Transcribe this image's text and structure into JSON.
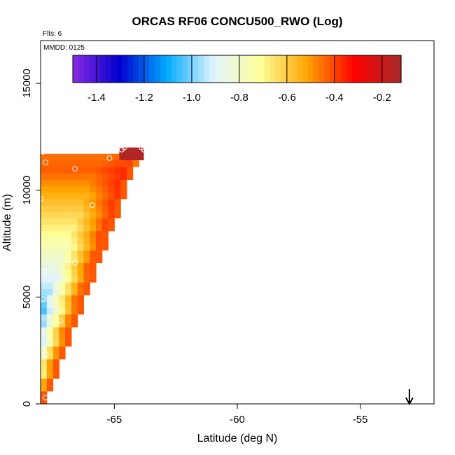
{
  "chart_data": {
    "type": "heatmap",
    "title": "ORCAS RF06 CONCU500_RWO (Log)",
    "xlabel": "Latitude (deg N)",
    "ylabel": "Altitude (m)",
    "annotations": {
      "flights": "Flts: 6",
      "date": "MMDD: 0125"
    },
    "xlim": [
      -68.0,
      -52.0
    ],
    "ylim": [
      0,
      17000
    ],
    "xticks": [
      -65,
      -60,
      -55
    ],
    "xtick_labels": [
      "-65",
      "-60",
      "-55"
    ],
    "yticks": [
      0,
      5000,
      10000,
      15000
    ],
    "ytick_labels": [
      "0",
      "5000",
      "10000",
      "15000"
    ],
    "colorbar": {
      "range": [
        -1.5,
        -0.12
      ],
      "ticks": [
        -1.4,
        -1.2,
        -1.0,
        -0.8,
        -0.6,
        -0.4,
        -0.2
      ],
      "tick_labels": [
        "-1.4",
        "-1.2",
        "-1.0",
        "-0.8",
        "-0.6",
        "-0.4",
        "-0.2"
      ],
      "colors": [
        "#8a2be2",
        "#0000cd",
        "#00aaff",
        "#e0f4ff",
        "#ffff99",
        "#ffa500",
        "#ff0000",
        "#a52a2a"
      ]
    },
    "cell_size": {
      "lat": 0.25,
      "alt": 300
    },
    "wedge": {
      "lat_left": -68.0,
      "lat_right_top": -63.9,
      "lat_right_bottom": -67.8,
      "alt_bottom": 0,
      "alt_top": 11800,
      "log_min": -1.45,
      "log_max": -0.35
    },
    "top_patch": {
      "lat_start": -64.8,
      "lat_end": -63.8,
      "alt_start": 11400,
      "alt_end": 12000,
      "value": -0.15
    },
    "sample_points": [
      {
        "lat": -67.9,
        "alt": 11800
      },
      {
        "lat": -67.8,
        "alt": 11300
      },
      {
        "lat": -66.6,
        "alt": 11000
      },
      {
        "lat": -65.2,
        "alt": 11500
      },
      {
        "lat": -64.6,
        "alt": 12000
      },
      {
        "lat": -64.7,
        "alt": 11900
      },
      {
        "lat": -63.9,
        "alt": 12000
      },
      {
        "lat": -63.8,
        "alt": 11900
      },
      {
        "lat": -65.9,
        "alt": 9300
      },
      {
        "lat": -66.6,
        "alt": 6600
      },
      {
        "lat": -67.9,
        "alt": 6200
      },
      {
        "lat": -67.9,
        "alt": 4900
      },
      {
        "lat": -67.2,
        "alt": 3900
      },
      {
        "lat": -67.8,
        "alt": 2300
      },
      {
        "lat": -67.8,
        "alt": 300
      },
      {
        "lat": -68.0,
        "alt": 9600
      }
    ],
    "arrow_marker": {
      "lat": -53.0
    }
  }
}
